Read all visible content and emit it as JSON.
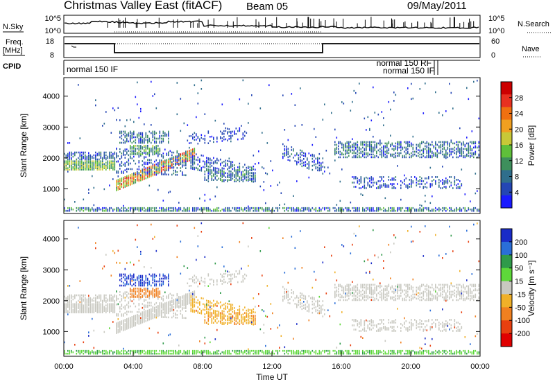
{
  "header": {
    "title": "Christmas Valley East (fitACF)",
    "beam": "Beam 05",
    "date": "09/May/2011"
  },
  "panels": {
    "nsky": {
      "left_label": "N.Sky",
      "right_label": "N.Search",
      "left_ticks": [
        "10^5",
        "10^0"
      ],
      "right_ticks": [
        "10^5",
        "10^0"
      ]
    },
    "freq": {
      "left_label_1": "Freq.",
      "left_label_2": "[MHz]",
      "right_label": "Nave",
      "left_ticks": [
        "18",
        "8"
      ],
      "right_ticks": [
        "60",
        "0"
      ]
    },
    "cpid": {
      "label": "CPID",
      "modes": [
        "normal 150 IF",
        "normal 150 RF",
        "normal 150 IF"
      ]
    }
  },
  "chart_data": [
    {
      "type": "heatmap",
      "name": "power",
      "ylabel": "Slant Range [km]",
      "ylim": [
        200,
        4600
      ],
      "yticks": [
        "1000",
        "2000",
        "3000",
        "4000"
      ],
      "colorbar": {
        "label": "Power [dB]",
        "ticks": [
          "4",
          "8",
          "12",
          "16",
          "20",
          "24",
          "28"
        ],
        "colors": [
          "#1a1aff",
          "#2446b4",
          "#2f6e8c",
          "#3e8f5c",
          "#5fbf3a",
          "#c8c837",
          "#f0a020",
          "#f07010",
          "#e83020",
          "#cc0000"
        ]
      }
    },
    {
      "type": "heatmap",
      "name": "velocity",
      "xlabel": "Time UT",
      "ylabel": "Slant Range [km]",
      "ylim": [
        200,
        4600
      ],
      "xticks": [
        "00:00",
        "04:00",
        "08:00",
        "12:00",
        "16:00",
        "20:00",
        "00:00"
      ],
      "yticks": [
        "1000",
        "2000",
        "3000",
        "4000"
      ],
      "colorbar": {
        "label": "Velocity [m s⁻¹]",
        "ticks": [
          "200",
          "100",
          "50",
          "15",
          "-15",
          "-50",
          "-100",
          "-200"
        ],
        "colors": [
          "#1a2cc8",
          "#2a6ed8",
          "#2f9a4a",
          "#5ed83a",
          "#c8c8c0",
          "#f0b028",
          "#f08020",
          "#e84010",
          "#e00000"
        ]
      }
    }
  ]
}
